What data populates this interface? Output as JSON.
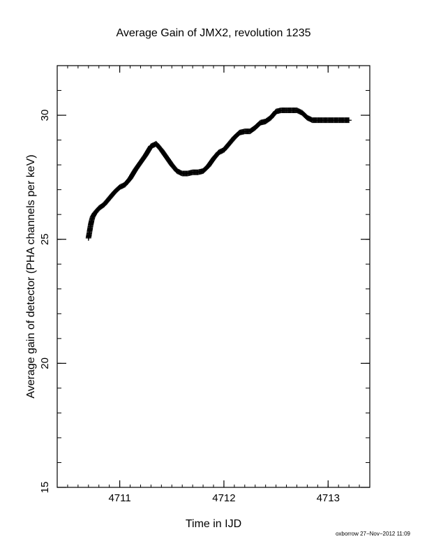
{
  "chart_data": {
    "type": "scatter",
    "title": "Average Gain of JMX2, revolution 1235",
    "xlabel": "Time in IJD",
    "ylabel": "Average gain of detector (PHA channels per keV)",
    "xlim": [
      4710.4,
      4713.4
    ],
    "ylim": [
      15,
      32
    ],
    "x_ticks": [
      4711,
      4712,
      4713
    ],
    "y_ticks": [
      15,
      20,
      25,
      30
    ],
    "x_minor_step": 0.1,
    "y_minor_step": 1,
    "marker": "+",
    "color": "#000000",
    "series": [
      {
        "x": [
          4710.7,
          4710.71,
          4710.72,
          4710.73,
          4710.74,
          4710.76,
          4710.78,
          4710.8,
          4710.85,
          4710.9,
          4710.95,
          4711.0,
          4711.05,
          4711.1,
          4711.15,
          4711.2,
          4711.25,
          4711.3,
          4711.35,
          4711.38,
          4711.4,
          4711.45,
          4711.5,
          4711.55,
          4711.6,
          4711.65,
          4711.7,
          4711.75,
          4711.8,
          4711.85,
          4711.9,
          4711.95,
          4712.0,
          4712.05,
          4712.1,
          4712.15,
          4712.2,
          4712.25,
          4712.3,
          4712.35,
          4712.4,
          4712.45,
          4712.5,
          4712.55,
          4712.6,
          4712.65,
          4712.7,
          4712.75,
          4712.8,
          4712.85,
          4712.9,
          4712.95,
          4713.0,
          4713.05,
          4713.1,
          4713.15,
          4713.2
        ],
        "y": [
          25.05,
          25.3,
          25.55,
          25.75,
          25.9,
          26.05,
          26.15,
          26.25,
          26.4,
          26.65,
          26.9,
          27.1,
          27.2,
          27.45,
          27.8,
          28.1,
          28.4,
          28.75,
          28.85,
          28.7,
          28.6,
          28.3,
          28.0,
          27.75,
          27.65,
          27.65,
          27.7,
          27.7,
          27.75,
          27.95,
          28.25,
          28.5,
          28.6,
          28.85,
          29.1,
          29.3,
          29.35,
          29.35,
          29.5,
          29.7,
          29.75,
          29.9,
          30.15,
          30.2,
          30.2,
          30.2,
          30.2,
          30.1,
          29.9,
          29.8,
          29.8,
          29.8,
          29.8,
          29.8,
          29.8,
          29.8,
          29.8
        ]
      }
    ]
  },
  "footer": "oxborrow 27−Nov−2012 11:09"
}
